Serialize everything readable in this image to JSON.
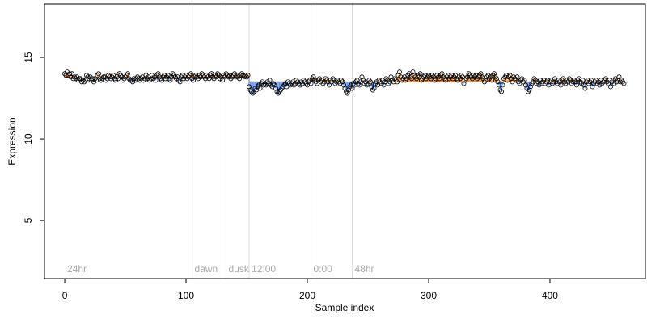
{
  "chart_data": {
    "type": "scatter",
    "x_label": "Sample index",
    "y_label": "Expression",
    "xlim": [
      -16.7,
      478.7
    ],
    "ylim": [
      1.44,
      18.27
    ],
    "xticks": [
      0,
      100,
      200,
      300,
      400
    ],
    "yticks": [
      5,
      10,
      15
    ],
    "above_color": "#f0a050",
    "below_color": "#6f9be8",
    "reference": [
      {
        "x": [
          0,
          152
        ],
        "y": 13.75
      },
      {
        "x": [
          152,
          461
        ],
        "y": 13.5
      }
    ],
    "vlines": [
      105,
      133,
      152,
      203,
      237
    ],
    "annotations": [
      {
        "x": 0,
        "text": "24hr"
      },
      {
        "x": 105,
        "text": "dawn"
      },
      {
        "x": 133,
        "text": "dusk"
      },
      {
        "x": 152,
        "text": "12:00"
      },
      {
        "x": 203,
        "text": "0:00"
      },
      {
        "x": 237,
        "text": "48hr"
      }
    ],
    "values": [
      14.0,
      13.9,
      14.1,
      13.9,
      14.0,
      13.8,
      14.0,
      13.7,
      13.8,
      13.7,
      13.8,
      13.6,
      13.7,
      13.7,
      13.5,
      13.6,
      13.5,
      13.6,
      13.9,
      13.8,
      13.7,
      13.8,
      13.6,
      13.7,
      13.5,
      13.7,
      13.6,
      13.9,
      14.0,
      13.7,
      13.6,
      13.7,
      13.8,
      13.8,
      13.6,
      13.7,
      13.9,
      13.8,
      13.7,
      13.8,
      13.9,
      13.7,
      13.6,
      13.8,
      13.7,
      14.0,
      13.9,
      13.8,
      13.6,
      13.7,
      13.8,
      13.9,
      14.0,
      13.7,
      13.6,
      13.6,
      13.5,
      13.7,
      13.6,
      13.7,
      13.8,
      13.7,
      13.6,
      13.7,
      13.8,
      13.6,
      13.7,
      13.9,
      13.7,
      13.8,
      13.6,
      13.7,
      13.9,
      13.7,
      13.8,
      13.6,
      13.9,
      14.0,
      13.8,
      13.7,
      13.6,
      13.8,
      13.9,
      13.7,
      13.8,
      13.9,
      13.7,
      13.6,
      13.8,
      14.0,
      13.9,
      13.8,
      13.7,
      13.8,
      13.6,
      13.5,
      13.8,
      13.9,
      13.7,
      13.8,
      13.9,
      13.7,
      13.8,
      13.9,
      14.0,
      13.7,
      13.6,
      13.8,
      13.9,
      13.8,
      13.7,
      13.9,
      13.8,
      14.0,
      13.9,
      13.8,
      13.7,
      13.9,
      13.8,
      13.7,
      13.9,
      14.0,
      13.8,
      13.7,
      13.9,
      13.8,
      14.0,
      13.9,
      13.7,
      13.8,
      13.6,
      13.9,
      13.8,
      14.0,
      13.9,
      13.8,
      13.9,
      13.7,
      13.8,
      13.9,
      14.0,
      13.8,
      13.9,
      13.8,
      13.7,
      13.9,
      14.0,
      13.9,
      13.8,
      13.9,
      13.8,
      13.9,
      13.2,
      13.0,
      12.9,
      12.8,
      12.9,
      13.1,
      13.0,
      13.2,
      13.3,
      13.1,
      13.4,
      13.5,
      13.3,
      13.4,
      13.3,
      13.5,
      13.4,
      13.6,
      13.3,
      13.2,
      13.4,
      13.3,
      13.1,
      12.9,
      12.8,
      12.9,
      13.0,
      13.1,
      13.2,
      13.3,
      13.4,
      13.2,
      13.5,
      13.4,
      13.3,
      13.4,
      13.5,
      13.3,
      13.4,
      13.6,
      13.5,
      13.4,
      13.3,
      13.5,
      13.4,
      13.6,
      13.5,
      13.4,
      13.3,
      13.5,
      13.6,
      13.4,
      13.7,
      13.8,
      13.6,
      13.5,
      13.4,
      13.6,
      13.7,
      13.5,
      13.6,
      13.4,
      13.5,
      13.7,
      13.6,
      13.5,
      13.3,
      13.6,
      13.5,
      13.7,
      13.6,
      13.4,
      13.5,
      13.6,
      13.5,
      13.4,
      13.6,
      13.5,
      13.3,
      13.1,
      12.9,
      12.8,
      13.0,
      13.2,
      13.3,
      13.1,
      13.4,
      13.3,
      13.5,
      13.6,
      13.4,
      13.3,
      13.5,
      13.8,
      13.6,
      13.4,
      13.5,
      13.3,
      13.4,
      13.6,
      13.5,
      13.2,
      13.0,
      13.1,
      13.4,
      13.5,
      13.3,
      13.6,
      13.5,
      13.4,
      13.6,
      13.3,
      13.5,
      13.7,
      13.6,
      13.4,
      13.5,
      13.8,
      13.6,
      13.5,
      13.7,
      13.6,
      13.5,
      13.9,
      14.1,
      13.8,
      13.6,
      13.7,
      13.8,
      13.6,
      13.7,
      13.9,
      14.0,
      13.8,
      13.7,
      14.1,
      13.9,
      13.8,
      13.7,
      13.9,
      13.8,
      14.0,
      13.6,
      13.7,
      13.8,
      13.9,
      13.7,
      13.8,
      13.9,
      13.8,
      13.7,
      13.9,
      13.8,
      13.6,
      13.7,
      13.9,
      13.8,
      13.7,
      13.9,
      14.0,
      13.8,
      13.7,
      13.6,
      13.8,
      13.9,
      13.7,
      13.8,
      13.9,
      13.7,
      13.8,
      13.9,
      13.7,
      13.6,
      13.8,
      13.7,
      13.9,
      13.8,
      13.4,
      13.6,
      13.7,
      13.8,
      14.0,
      13.9,
      13.8,
      13.7,
      13.9,
      13.8,
      13.9,
      13.7,
      13.8,
      13.9,
      14.0,
      13.8,
      13.7,
      13.5,
      13.6,
      13.8,
      13.9,
      13.7,
      13.8,
      13.6,
      13.9,
      14.0,
      13.8,
      13.7,
      13.5,
      13.3,
      13.0,
      12.9,
      13.3,
      13.7,
      13.8,
      13.9,
      13.6,
      13.8,
      13.9,
      13.7,
      13.5,
      13.8,
      13.7,
      13.6,
      13.8,
      13.5,
      13.4,
      13.6,
      13.7,
      13.5,
      13.6,
      13.3,
      13.1,
      12.9,
      13.0,
      13.2,
      13.4,
      13.5,
      13.7,
      13.6,
      13.4,
      13.5,
      13.3,
      13.6,
      13.4,
      13.5,
      13.6,
      13.4,
      13.5,
      13.6,
      13.3,
      13.5,
      13.6,
      13.4,
      13.5,
      13.7,
      13.5,
      13.4,
      13.6,
      13.5,
      13.3,
      13.6,
      13.7,
      13.5,
      13.4,
      13.6,
      13.5,
      13.7,
      13.6,
      13.4,
      13.5,
      13.6,
      13.5,
      13.3,
      13.6,
      13.7,
      13.5,
      13.4,
      13.6,
      13.3,
      13.1,
      13.5,
      13.6,
      13.4,
      13.5,
      13.6,
      13.2,
      13.4,
      13.5,
      13.6,
      13.4,
      13.5,
      13.3,
      13.6,
      13.4,
      13.5,
      13.6,
      13.7,
      13.5,
      13.4,
      13.6,
      13.2,
      13.5,
      13.6,
      13.4,
      13.7,
      13.5,
      13.6,
      13.8,
      13.5,
      13.6,
      13.5,
      13.4
    ]
  }
}
